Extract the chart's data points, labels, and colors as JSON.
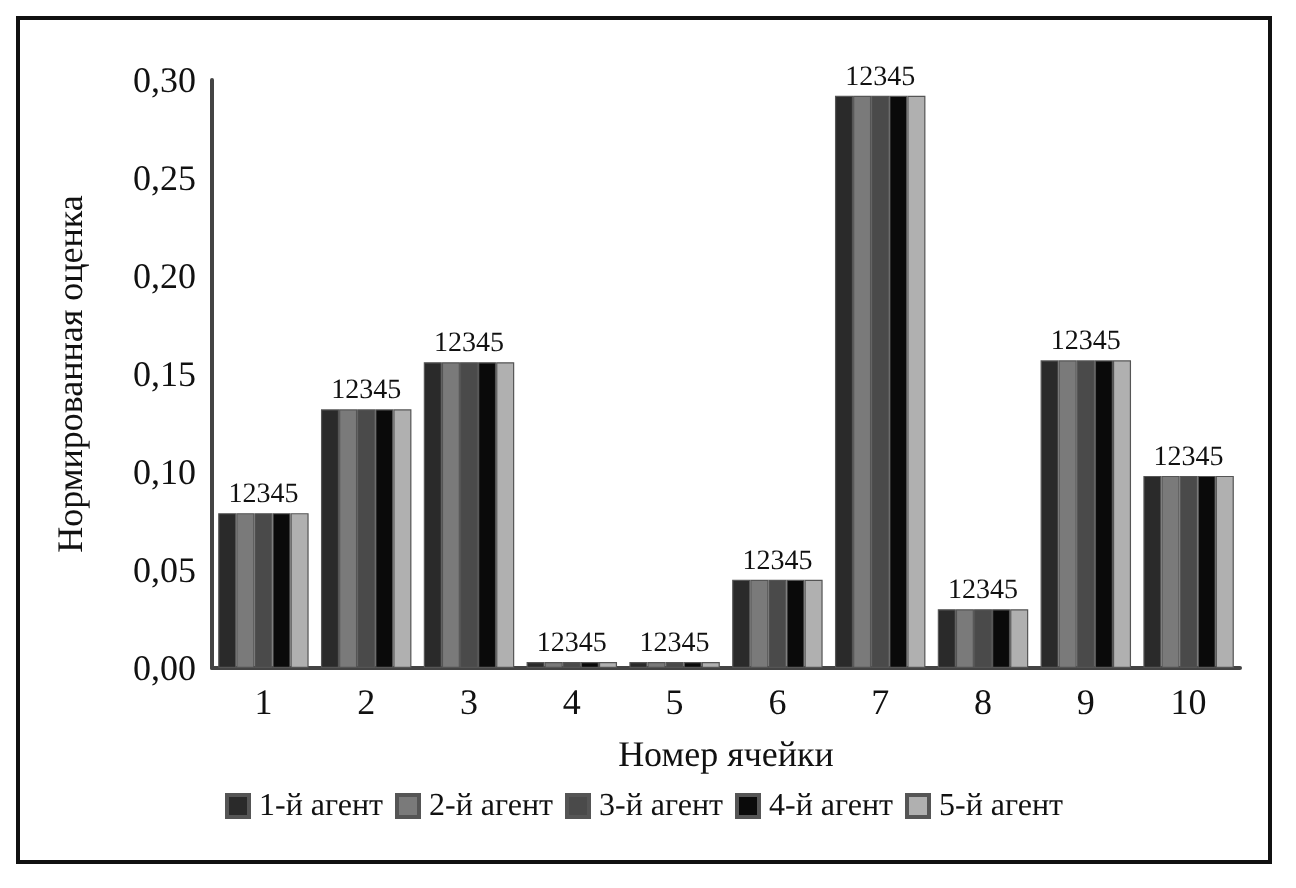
{
  "chart_data": {
    "type": "bar",
    "xlabel": "Номер ячейки",
    "ylabel": "Нормированная оценка",
    "categories": [
      "1",
      "2",
      "3",
      "4",
      "5",
      "6",
      "7",
      "8",
      "9",
      "10"
    ],
    "series": [
      {
        "name": "1-й агент",
        "color": "#2a2a2a",
        "values": [
          0.079,
          0.132,
          0.156,
          0.003,
          0.003,
          0.045,
          0.292,
          0.03,
          0.157,
          0.098
        ]
      },
      {
        "name": "2-й агент",
        "color": "#7a7a7a",
        "values": [
          0.079,
          0.132,
          0.156,
          0.003,
          0.003,
          0.045,
          0.292,
          0.03,
          0.157,
          0.098
        ]
      },
      {
        "name": "3-й агент",
        "color": "#4a4a4a",
        "values": [
          0.079,
          0.132,
          0.156,
          0.003,
          0.003,
          0.045,
          0.292,
          0.03,
          0.157,
          0.098
        ]
      },
      {
        "name": "4-й агент",
        "color": "#0a0a0a",
        "values": [
          0.079,
          0.132,
          0.156,
          0.003,
          0.003,
          0.045,
          0.292,
          0.03,
          0.157,
          0.098
        ]
      },
      {
        "name": "5-й агент",
        "color": "#b0b0b0",
        "values": [
          0.079,
          0.132,
          0.156,
          0.003,
          0.003,
          0.045,
          0.292,
          0.03,
          0.157,
          0.098
        ]
      }
    ],
    "annotations": [
      {
        "text": "12345",
        "x": "1",
        "y": 0.079
      },
      {
        "text": "12345",
        "x": "2",
        "y": 0.132
      },
      {
        "text": "12345",
        "x": "3",
        "y": 0.156
      },
      {
        "text": "12345",
        "x": "4",
        "y": 0.003
      },
      {
        "text": "12345",
        "x": "5",
        "y": 0.003
      },
      {
        "text": "12345",
        "x": "6",
        "y": 0.045
      },
      {
        "text": "12345",
        "x": "7",
        "y": 0.292
      },
      {
        "text": "12345",
        "x": "8",
        "y": 0.03
      },
      {
        "text": "12345",
        "x": "9",
        "y": 0.157
      },
      {
        "text": "12345",
        "x": "10",
        "y": 0.098
      }
    ],
    "ylim": [
      0,
      0.3
    ],
    "yticks": [
      {
        "value": 0,
        "label": "0,00"
      },
      {
        "value": 0.05,
        "label": "0,05"
      },
      {
        "value": 0.1,
        "label": "0,10"
      },
      {
        "value": 0.15,
        "label": "0,15"
      },
      {
        "value": 0.2,
        "label": "0,20"
      },
      {
        "value": 0.25,
        "label": "0,25"
      },
      {
        "value": 0.3,
        "label": "0,30"
      }
    ],
    "grid": false,
    "legend": "bottom"
  }
}
